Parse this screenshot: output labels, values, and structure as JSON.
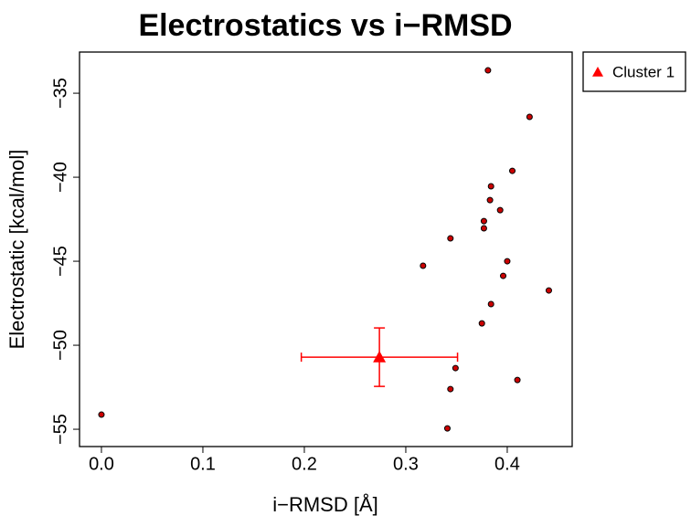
{
  "chart_data": {
    "type": "scatter",
    "title": "Electrostatics vs i−RMSD",
    "x_label": "i−RMSD [Å]",
    "y_label": "Electrostatic [kcal/mol]",
    "xlim": [
      -0.0216,
      0.464
    ],
    "ylim": [
      -56.03,
      -32.55
    ],
    "xticks": [
      {
        "value": 0,
        "label": "0.0"
      },
      {
        "value": 0.1,
        "label": "0.1"
      },
      {
        "value": 0.2,
        "label": "0.2"
      },
      {
        "value": 0.3,
        "label": "0.3"
      },
      {
        "value": 0.4,
        "label": "0.4"
      }
    ],
    "yticks": [
      {
        "value": -35,
        "label": "−35"
      },
      {
        "value": -40,
        "label": "−40"
      },
      {
        "value": -45,
        "label": "−45"
      },
      {
        "value": -50,
        "label": "−50"
      },
      {
        "value": -55,
        "label": "−55"
      }
    ],
    "legend": "outside-top-right",
    "series": [
      {
        "color": "#cc0000",
        "x": [
          0.381,
          0.422,
          0.405,
          0.384,
          0.383,
          0.393,
          0.377,
          0.377,
          0.344,
          0.317,
          0.4,
          0.396,
          0.441,
          0.384,
          0.375,
          0.349,
          0.41,
          0.344,
          0.341,
          0.0
        ],
        "values": [
          -33.64,
          -36.41,
          -39.62,
          -40.54,
          -41.36,
          -41.96,
          -42.61,
          -43.04,
          -43.64,
          -45.27,
          -45.0,
          -45.87,
          -46.74,
          -47.55,
          -48.7,
          -51.36,
          -52.07,
          -52.61,
          -54.95,
          -54.13
        ]
      },
      {
        "name": "Cluster 1",
        "color": "#ff0000",
        "marker": "triangle",
        "x": [
          0.274
        ],
        "values": [
          -50.71
        ],
        "xerr": [
          0.077
        ],
        "yerr": [
          1.74
        ]
      }
    ]
  }
}
